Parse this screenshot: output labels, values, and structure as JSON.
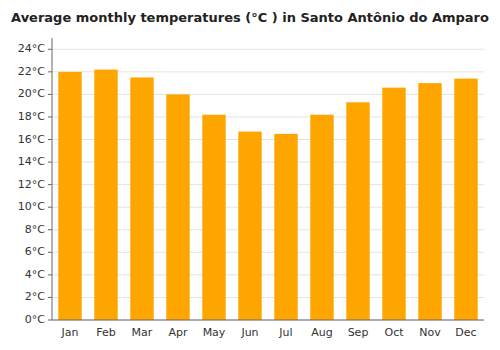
{
  "chart_data": {
    "type": "bar",
    "title": "Average monthly temperatures (°C ) in Santo Antônio do Amparo",
    "categories": [
      "Jan",
      "Feb",
      "Mar",
      "Apr",
      "May",
      "Jun",
      "Jul",
      "Aug",
      "Sep",
      "Oct",
      "Nov",
      "Dec"
    ],
    "values": [
      22.0,
      22.2,
      21.5,
      20.0,
      18.2,
      16.7,
      16.5,
      18.2,
      19.3,
      20.6,
      21.0,
      21.4
    ],
    "color": "#FFA500",
    "ylim": [
      0,
      25
    ],
    "yticks": [
      {
        "value": 0,
        "label": "0°C"
      },
      {
        "value": 2,
        "label": "2°C"
      },
      {
        "value": 4,
        "label": "4°C"
      },
      {
        "value": 6,
        "label": "6°C"
      },
      {
        "value": 8,
        "label": "8°C"
      },
      {
        "value": 10,
        "label": "10°C"
      },
      {
        "value": 12,
        "label": "12°C"
      },
      {
        "value": 14,
        "label": "14°C"
      },
      {
        "value": 16,
        "label": "16°C"
      },
      {
        "value": 18,
        "label": "18°C"
      },
      {
        "value": 20,
        "label": "20°C"
      },
      {
        "value": 22,
        "label": "22°C"
      },
      {
        "value": 24,
        "label": "24°C"
      }
    ],
    "grid": true
  }
}
